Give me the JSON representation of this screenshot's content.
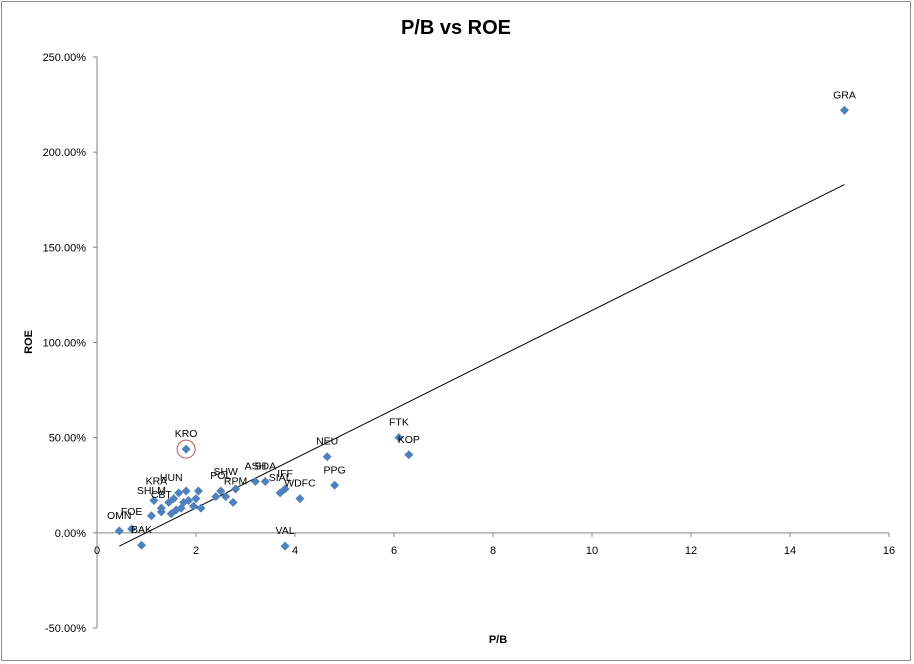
{
  "chart_data": {
    "type": "scatter",
    "title": "P/B vs ROE",
    "xlabel": "P/B",
    "ylabel": "ROE",
    "xlim": [
      0,
      16
    ],
    "ylim": [
      -0.5,
      2.5
    ],
    "x_ticks": [
      "0",
      "2",
      "4",
      "6",
      "8",
      "10",
      "12",
      "14",
      "16"
    ],
    "y_ticks": [
      "-50.00%",
      "0.00%",
      "50.00%",
      "100.00%",
      "150.00%",
      "200.00%",
      "250.00%"
    ],
    "marker_color": "#4f81bd",
    "trendline": {
      "x": [
        0.45,
        15.1
      ],
      "y": [
        -0.07,
        1.83
      ]
    },
    "highlighted": "KRO",
    "labels": [
      {
        "text": "GRA",
        "x": 15.1,
        "y": 2.22
      },
      {
        "text": "FTK",
        "x": 6.1,
        "y": 0.5
      },
      {
        "text": "KOP",
        "x": 6.3,
        "y": 0.41
      },
      {
        "text": "NEU",
        "x": 4.65,
        "y": 0.4
      },
      {
        "text": "PPG",
        "x": 4.8,
        "y": 0.25
      },
      {
        "text": "KRO",
        "x": 1.8,
        "y": 0.44
      },
      {
        "text": "WDFC",
        "x": 4.1,
        "y": 0.18
      },
      {
        "text": "VAL",
        "x": 3.8,
        "y": -0.07
      },
      {
        "text": "ASH",
        "x": 3.2,
        "y": 0.27
      },
      {
        "text": "SDA",
        "x": 3.4,
        "y": 0.27
      },
      {
        "text": "IFF",
        "x": 3.8,
        "y": 0.23
      },
      {
        "text": "SIAL",
        "x": 3.7,
        "y": 0.21
      },
      {
        "text": "POL",
        "x": 2.5,
        "y": 0.22
      },
      {
        "text": "RPM",
        "x": 2.8,
        "y": 0.19
      },
      {
        "text": "SHW",
        "x": 2.6,
        "y": 0.24
      },
      {
        "text": "HUN",
        "x": 1.5,
        "y": 0.21
      },
      {
        "text": "KRA",
        "x": 1.2,
        "y": 0.19
      },
      {
        "text": "CBT",
        "x": 1.3,
        "y": 0.12
      },
      {
        "text": "SHLM",
        "x": 1.1,
        "y": 0.14
      },
      {
        "text": "OMN",
        "x": 0.45,
        "y": 0.01
      },
      {
        "text": "FOE",
        "x": 0.7,
        "y": 0.03
      },
      {
        "text": "BAK",
        "x": 0.9,
        "y": -0.065
      }
    ],
    "points": [
      {
        "x": 15.1,
        "y": 2.22
      },
      {
        "x": 6.1,
        "y": 0.5
      },
      {
        "x": 6.3,
        "y": 0.41
      },
      {
        "x": 4.65,
        "y": 0.4
      },
      {
        "x": 4.8,
        "y": 0.25
      },
      {
        "x": 1.8,
        "y": 0.44
      },
      {
        "x": 4.1,
        "y": 0.18
      },
      {
        "x": 3.8,
        "y": -0.07
      },
      {
        "x": 3.8,
        "y": 0.23
      },
      {
        "x": 3.7,
        "y": 0.21
      },
      {
        "x": 3.4,
        "y": 0.27
      },
      {
        "x": 3.2,
        "y": 0.27
      },
      {
        "x": 2.8,
        "y": 0.23
      },
      {
        "x": 2.75,
        "y": 0.16
      },
      {
        "x": 2.6,
        "y": 0.19
      },
      {
        "x": 2.5,
        "y": 0.22
      },
      {
        "x": 2.4,
        "y": 0.19
      },
      {
        "x": 2.1,
        "y": 0.13
      },
      {
        "x": 2.05,
        "y": 0.22
      },
      {
        "x": 2.0,
        "y": 0.18
      },
      {
        "x": 1.95,
        "y": 0.14
      },
      {
        "x": 1.85,
        "y": 0.17
      },
      {
        "x": 1.8,
        "y": 0.22
      },
      {
        "x": 1.75,
        "y": 0.16
      },
      {
        "x": 1.7,
        "y": 0.13
      },
      {
        "x": 1.65,
        "y": 0.21
      },
      {
        "x": 1.6,
        "y": 0.12
      },
      {
        "x": 1.55,
        "y": 0.18
      },
      {
        "x": 1.5,
        "y": 0.1
      },
      {
        "x": 1.45,
        "y": 0.16
      },
      {
        "x": 1.3,
        "y": 0.11
      },
      {
        "x": 1.3,
        "y": 0.13
      },
      {
        "x": 1.15,
        "y": 0.17
      },
      {
        "x": 1.1,
        "y": 0.09
      },
      {
        "x": 0.9,
        "y": -0.065
      },
      {
        "x": 0.7,
        "y": 0.02
      },
      {
        "x": 0.45,
        "y": 0.01
      }
    ]
  }
}
